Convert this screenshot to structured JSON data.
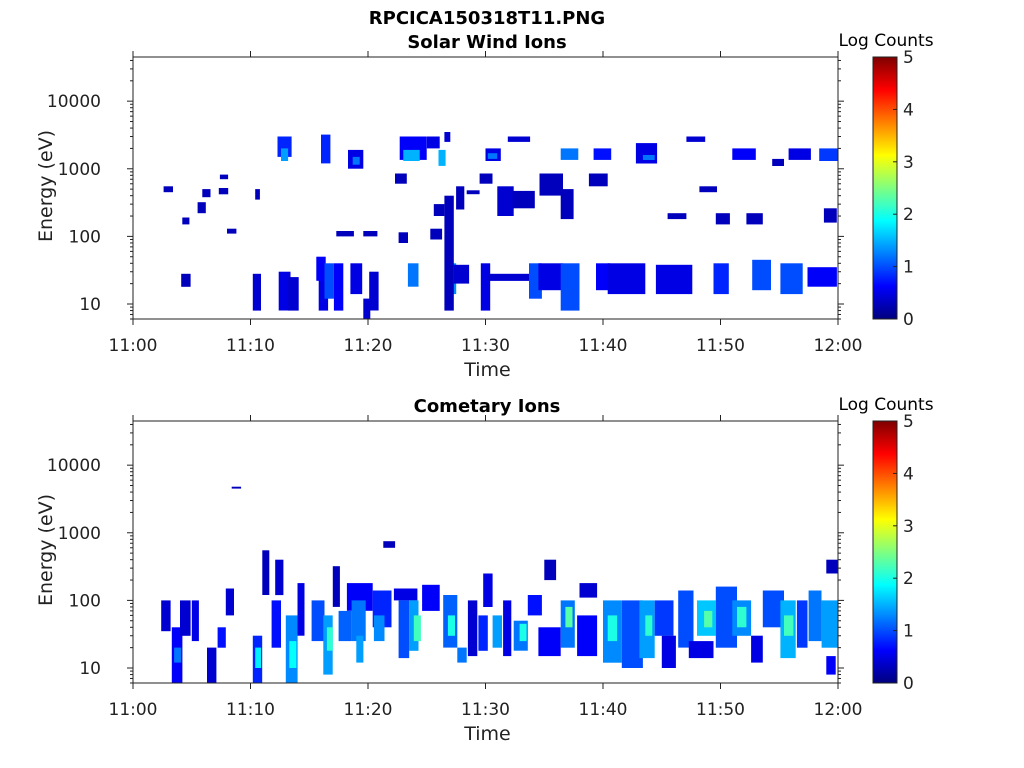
{
  "figure_title": "RPCICA150318T11.PNG",
  "colormap": [
    "#00007f",
    "#0000ff",
    "#0080ff",
    "#00ffff",
    "#80ff80",
    "#ffff00",
    "#ff8000",
    "#ff0000",
    "#7f0000"
  ],
  "chart_data": [
    {
      "type": "heatmap",
      "title": "Solar Wind Ions",
      "xlabel": "Time",
      "ylabel": "Energy (eV)",
      "yscale": "log",
      "xlim": [
        "11:00",
        "12:00"
      ],
      "ylim": [
        6,
        45000
      ],
      "x_ticks": [
        "11:00",
        "11:10",
        "11:20",
        "11:30",
        "11:40",
        "11:50",
        "12:00"
      ],
      "y_ticks": [
        10,
        100,
        1000,
        10000
      ],
      "colorbar": {
        "label": "Log Counts",
        "range": [
          0,
          5
        ],
        "ticks": [
          0,
          1,
          2,
          3,
          4,
          5
        ]
      },
      "cells_format": "[start minute after 11:00, end minute, energy eV low, energy eV high, log counts]",
      "cells": [
        [
          2.6,
          3.4,
          450,
          550,
          0.3
        ],
        [
          4.1,
          4.9,
          18,
          28,
          0.3
        ],
        [
          4.2,
          4.8,
          150,
          190,
          0.3
        ],
        [
          5.5,
          6.2,
          220,
          320,
          0.3
        ],
        [
          5.9,
          6.6,
          380,
          500,
          0.3
        ],
        [
          7.3,
          8.1,
          420,
          520,
          0.3
        ],
        [
          7.4,
          8.1,
          700,
          820,
          0.3
        ],
        [
          8.0,
          8.8,
          110,
          130,
          0.3
        ],
        [
          10.2,
          10.9,
          8,
          28,
          0.4
        ],
        [
          10.4,
          10.8,
          350,
          500,
          0.3
        ],
        [
          12.4,
          13.4,
          8,
          30,
          0.5
        ],
        [
          12.3,
          13.5,
          1500,
          3000,
          0.8
        ],
        [
          12.6,
          13.2,
          1300,
          2000,
          1.4
        ],
        [
          13.2,
          14.1,
          8,
          25,
          0.4
        ],
        [
          15.8,
          16.6,
          8,
          25,
          0.5
        ],
        [
          16.0,
          16.8,
          1200,
          3200,
          0.8
        ],
        [
          15.6,
          16.4,
          22,
          50,
          0.6
        ],
        [
          16.3,
          17.1,
          12,
          40,
          1.0
        ],
        [
          17.1,
          17.9,
          8,
          40,
          0.6
        ],
        [
          18.3,
          19.6,
          1000,
          1900,
          0.5
        ],
        [
          18.7,
          19.3,
          1150,
          1500,
          1.2
        ],
        [
          17.3,
          18.8,
          100,
          120,
          0.3
        ],
        [
          19.6,
          20.8,
          100,
          120,
          0.3
        ],
        [
          18.5,
          19.5,
          14,
          40,
          0.5
        ],
        [
          19.6,
          20.2,
          6,
          12,
          0.4
        ],
        [
          20.1,
          20.9,
          8,
          30,
          0.4
        ],
        [
          22.7,
          25.0,
          1350,
          3000,
          0.6
        ],
        [
          23.0,
          24.4,
          1300,
          1900,
          1.5
        ],
        [
          25.0,
          26.1,
          2000,
          3000,
          0.5
        ],
        [
          26.0,
          26.6,
          1100,
          1900,
          1.5
        ],
        [
          26.5,
          27.0,
          2500,
          3500,
          0.4
        ],
        [
          22.3,
          23.3,
          600,
          850,
          0.3
        ],
        [
          22.6,
          23.4,
          80,
          115,
          0.3
        ],
        [
          23.4,
          24.3,
          18,
          40,
          1.2
        ],
        [
          25.3,
          26.3,
          90,
          130,
          0.3
        ],
        [
          25.6,
          26.5,
          200,
          300,
          0.3
        ],
        [
          26.6,
          27.5,
          14,
          40,
          1.3
        ],
        [
          27.3,
          28.6,
          20,
          38,
          0.4
        ],
        [
          26.5,
          27.3,
          8,
          400,
          0.3
        ],
        [
          27.5,
          28.2,
          250,
          550,
          0.3
        ],
        [
          28.4,
          29.5,
          420,
          480,
          0.3
        ],
        [
          29.5,
          30.6,
          600,
          850,
          0.3
        ],
        [
          29.6,
          30.4,
          8,
          40,
          0.5
        ],
        [
          30.2,
          34.5,
          22,
          28,
          0.4
        ],
        [
          31.0,
          32.4,
          200,
          550,
          0.4
        ],
        [
          32.3,
          34.2,
          260,
          470,
          0.3
        ],
        [
          30.0,
          31.3,
          1300,
          2000,
          0.5
        ],
        [
          30.2,
          31.0,
          1400,
          1700,
          1.2
        ],
        [
          31.9,
          33.8,
          2500,
          3000,
          0.4
        ],
        [
          33.7,
          34.8,
          12,
          40,
          1.0
        ],
        [
          34.6,
          36.6,
          400,
          850,
          0.3
        ],
        [
          34.5,
          36.6,
          16,
          40,
          0.5
        ],
        [
          36.4,
          38.0,
          8,
          40,
          1.0
        ],
        [
          36.4,
          37.9,
          1350,
          2000,
          1.2
        ],
        [
          36.4,
          37.5,
          180,
          500,
          0.3
        ],
        [
          39.2,
          40.7,
          1350,
          2000,
          0.7
        ],
        [
          39.4,
          40.6,
          16,
          40,
          0.6
        ],
        [
          38.8,
          40.4,
          550,
          850,
          0.3
        ],
        [
          40.4,
          43.6,
          14,
          40,
          0.5
        ],
        [
          42.8,
          44.6,
          1200,
          2400,
          0.5
        ],
        [
          43.4,
          44.4,
          1350,
          1600,
          1.2
        ],
        [
          44.5,
          47.6,
          14,
          38,
          0.5
        ],
        [
          45.5,
          47.1,
          180,
          220,
          0.3
        ],
        [
          47.1,
          48.7,
          2500,
          3000,
          0.4
        ],
        [
          48.2,
          49.7,
          450,
          550,
          0.3
        ],
        [
          49.4,
          50.7,
          14,
          40,
          0.8
        ],
        [
          49.6,
          50.8,
          150,
          220,
          0.3
        ],
        [
          51.0,
          53.0,
          1350,
          2000,
          0.6
        ],
        [
          52.2,
          53.6,
          150,
          220,
          0.3
        ],
        [
          52.7,
          54.3,
          16,
          45,
          1.0
        ],
        [
          54.4,
          55.4,
          1100,
          1400,
          0.3
        ],
        [
          55.1,
          57.0,
          14,
          40,
          1.0
        ],
        [
          55.8,
          57.7,
          1350,
          2000,
          0.5
        ],
        [
          57.4,
          59.9,
          18,
          35,
          0.6
        ],
        [
          58.4,
          60.0,
          1300,
          2000,
          0.9
        ],
        [
          58.8,
          59.9,
          160,
          260,
          0.3
        ]
      ]
    },
    {
      "type": "heatmap",
      "title": "Cometary Ions",
      "xlabel": "Time",
      "ylabel": "Energy (eV)",
      "yscale": "log",
      "xlim": [
        "11:00",
        "12:00"
      ],
      "ylim": [
        6,
        45000
      ],
      "x_ticks": [
        "11:00",
        "11:10",
        "11:20",
        "11:30",
        "11:40",
        "11:50",
        "12:00"
      ],
      "y_ticks": [
        10,
        100,
        1000,
        10000
      ],
      "colorbar": {
        "label": "Log Counts",
        "range": [
          0,
          5
        ],
        "ticks": [
          0,
          1,
          2,
          3,
          4,
          5
        ]
      },
      "cells_format": "[start minute after 11:00, end minute, energy eV low, energy eV high, log counts]",
      "cells": [
        [
          2.4,
          3.2,
          35,
          100,
          0.4
        ],
        [
          3.3,
          4.2,
          6,
          40,
          0.6
        ],
        [
          3.5,
          4.1,
          12,
          20,
          1.2
        ],
        [
          4.0,
          4.9,
          30,
          100,
          0.4
        ],
        [
          5.0,
          5.6,
          25,
          100,
          0.5
        ],
        [
          6.3,
          7.1,
          6,
          20,
          0.4
        ],
        [
          7.2,
          7.9,
          20,
          40,
          0.7
        ],
        [
          7.9,
          8.6,
          60,
          150,
          0.4
        ],
        [
          8.4,
          9.2,
          4500,
          4800,
          0.3
        ],
        [
          10.2,
          11.0,
          6,
          30,
          0.8
        ],
        [
          10.4,
          10.9,
          10,
          20,
          1.8
        ],
        [
          11.0,
          11.6,
          120,
          550,
          0.3
        ],
        [
          11.8,
          12.6,
          20,
          100,
          0.7
        ],
        [
          12.1,
          12.8,
          120,
          400,
          0.4
        ],
        [
          13.0,
          14.0,
          6,
          60,
          1.3
        ],
        [
          13.3,
          13.9,
          10,
          25,
          1.9
        ],
        [
          14.0,
          14.6,
          30,
          180,
          0.5
        ],
        [
          15.2,
          16.3,
          25,
          100,
          1.0
        ],
        [
          16.2,
          17.0,
          8,
          60,
          1.4
        ],
        [
          16.5,
          17.0,
          18,
          40,
          2.1
        ],
        [
          17.0,
          17.6,
          80,
          320,
          0.3
        ],
        [
          17.5,
          18.6,
          25,
          70,
          1.1
        ],
        [
          18.2,
          20.4,
          70,
          180,
          0.6
        ],
        [
          18.6,
          19.8,
          25,
          100,
          1.2
        ],
        [
          19.0,
          19.6,
          12,
          30,
          1.4
        ],
        [
          20.4,
          22.0,
          40,
          140,
          0.8
        ],
        [
          20.5,
          21.4,
          25,
          60,
          1.3
        ],
        [
          21.3,
          22.3,
          600,
          750,
          0.3
        ],
        [
          22.2,
          24.2,
          100,
          150,
          0.5
        ],
        [
          22.6,
          23.5,
          14,
          100,
          1.0
        ],
        [
          23.5,
          24.3,
          18,
          100,
          1.4
        ],
        [
          23.9,
          24.5,
          25,
          60,
          2.2
        ],
        [
          24.6,
          26.1,
          70,
          170,
          0.6
        ],
        [
          26.4,
          27.6,
          20,
          120,
          1.1
        ],
        [
          26.8,
          27.4,
          30,
          60,
          2.0
        ],
        [
          27.6,
          28.4,
          12,
          20,
          1.2
        ],
        [
          28.5,
          29.3,
          15,
          100,
          0.4
        ],
        [
          29.4,
          30.2,
          18,
          60,
          0.8
        ],
        [
          29.8,
          30.6,
          80,
          250,
          0.5
        ],
        [
          30.6,
          31.4,
          20,
          60,
          1.4
        ],
        [
          31.5,
          32.2,
          15,
          100,
          0.5
        ],
        [
          32.4,
          33.6,
          18,
          50,
          1.2
        ],
        [
          32.9,
          33.5,
          25,
          45,
          2.0
        ],
        [
          33.6,
          34.8,
          60,
          120,
          0.7
        ],
        [
          34.5,
          36.4,
          15,
          40,
          0.6
        ],
        [
          35.0,
          36.0,
          200,
          400,
          0.3
        ],
        [
          36.4,
          37.6,
          20,
          100,
          1.2
        ],
        [
          36.8,
          37.4,
          40,
          80,
          2.3
        ],
        [
          37.8,
          39.5,
          15,
          60,
          0.6
        ],
        [
          38.0,
          39.5,
          110,
          180,
          0.4
        ],
        [
          40.0,
          41.6,
          12,
          100,
          1.3
        ],
        [
          40.4,
          41.2,
          25,
          60,
          2.0
        ],
        [
          41.6,
          43.4,
          10,
          100,
          1.0
        ],
        [
          43.1,
          44.4,
          14,
          100,
          1.4
        ],
        [
          43.6,
          44.2,
          30,
          60,
          2.1
        ],
        [
          44.4,
          46.0,
          30,
          100,
          0.9
        ],
        [
          45.0,
          46.2,
          10,
          30,
          0.5
        ],
        [
          46.4,
          47.7,
          20,
          140,
          1.0
        ],
        [
          47.3,
          49.4,
          14,
          25,
          0.5
        ],
        [
          48.0,
          49.6,
          30,
          100,
          1.6
        ],
        [
          48.6,
          49.3,
          40,
          70,
          2.3
        ],
        [
          49.6,
          51.4,
          20,
          160,
          1.0
        ],
        [
          51.0,
          52.6,
          30,
          100,
          1.3
        ],
        [
          51.4,
          52.2,
          40,
          80,
          2.1
        ],
        [
          52.6,
          53.6,
          12,
          30,
          0.5
        ],
        [
          53.6,
          55.4,
          40,
          140,
          1.0
        ],
        [
          55.1,
          56.4,
          14,
          100,
          1.5
        ],
        [
          55.4,
          56.2,
          30,
          60,
          2.2
        ],
        [
          56.5,
          57.4,
          20,
          100,
          0.9
        ],
        [
          57.5,
          58.6,
          25,
          140,
          1.2
        ],
        [
          58.6,
          60.0,
          20,
          100,
          1.4
        ],
        [
          59.0,
          60.0,
          250,
          400,
          0.3
        ],
        [
          59.0,
          59.8,
          8,
          15,
          0.6
        ]
      ]
    }
  ]
}
